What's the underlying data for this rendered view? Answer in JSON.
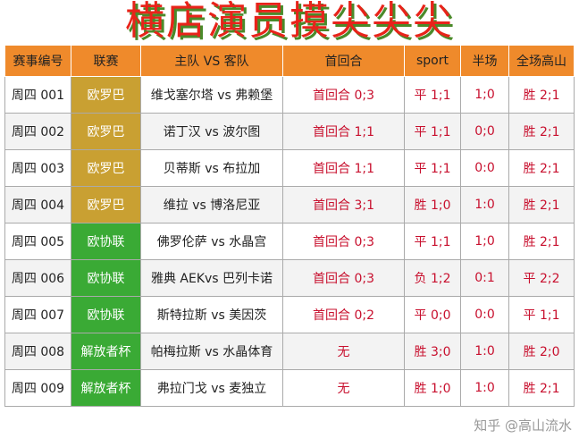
{
  "title": "横店演员摸尖尖尖",
  "watermark": "知乎 @高山流水",
  "colors": {
    "header": "#ef8a2b",
    "europa": "#c9a032",
    "conference": "#3aaa35",
    "red": "#c8102e"
  },
  "headers": [
    "赛事编号",
    "联赛",
    "主队 VS 客队",
    "首回合",
    "sport",
    "半场",
    "全场高山"
  ],
  "rows": [
    [
      "周四 001",
      "欧罗巴",
      "维戈塞尔塔 vs 弗赖堡",
      "首回合 0;3",
      "平 1;1",
      "1;0",
      "胜 2;1"
    ],
    [
      "周四 002",
      "欧罗巴",
      "诺丁汉 vs 波尔图",
      "首回合 1;1",
      "平 1;1",
      "0;0",
      "胜 2;1"
    ],
    [
      "周四 003",
      "欧罗巴",
      "贝蒂斯 vs 布拉加",
      "首回合 1;1",
      "平 1;1",
      "0:0",
      "胜 2;1"
    ],
    [
      "周四 004",
      "欧罗巴",
      "维拉 vs 博洛尼亚",
      "首回合 3;1",
      "胜 1;0",
      "1:0",
      "胜 2;1"
    ],
    [
      "周四 005",
      "欧协联",
      "佛罗伦萨 vs 水晶宫",
      "首回合 0;3",
      "平 1;1",
      "1;0",
      "胜 2;1"
    ],
    [
      "周四 006",
      "欧协联",
      "雅典 AEKvs 巴列卡诺",
      "首回合 0;3",
      "负 1;2",
      "0:1",
      "平 2;2"
    ],
    [
      "周四 007",
      "欧协联",
      "斯特拉斯 vs 美因茨",
      "首回合 0;2",
      "平 0;0",
      "0:0",
      "平 1;1"
    ],
    [
      "周四 008",
      "解放者杯",
      "帕梅拉斯 vs 水晶体育",
      "无",
      "胜 3;0",
      "1:0",
      "胜 2;0"
    ],
    [
      "周四 009",
      "解放者杯",
      "弗拉门戈 vs 麦独立",
      "无",
      "胜 1;0",
      "1:0",
      "胜 2;1"
    ]
  ]
}
